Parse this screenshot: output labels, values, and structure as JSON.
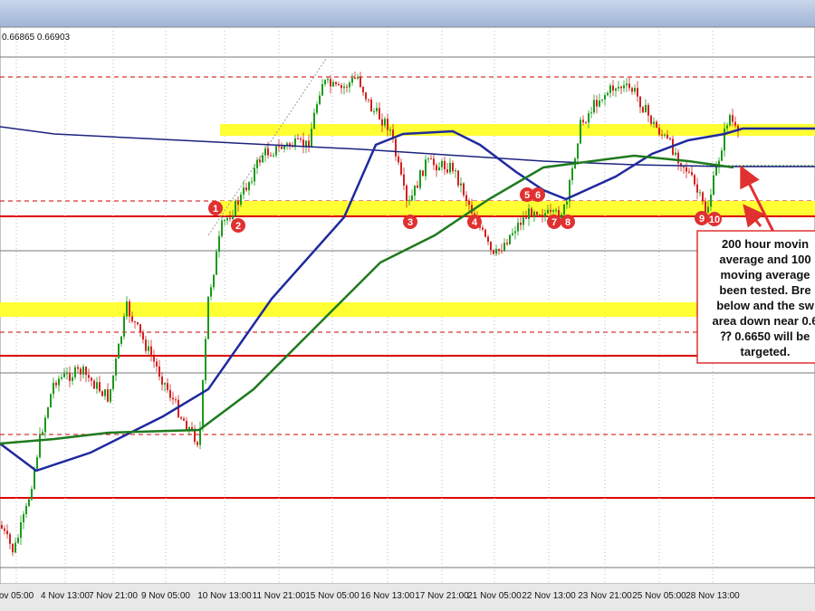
{
  "header": {
    "quote": "0.66865 0.66903"
  },
  "x_axis": {
    "labels": [
      "ov 05:00",
      "4 Nov 13:00",
      "7 Nov 21:00",
      "9 Nov 05:00",
      "10 Nov 13:00",
      "11 Nov 21:00",
      "15 Nov 05:00",
      "16 Nov 13:00",
      "17 Nov 21:00",
      "21 Nov 05:00",
      "22 Nov 13:00",
      "23 Nov 21:00",
      "25 Nov 05:00",
      "28 Nov 13:00"
    ]
  },
  "markers": [
    "1",
    "2",
    "3",
    "4",
    "5",
    "6",
    "7",
    "8",
    "9",
    "10"
  ],
  "annotation": {
    "lines": [
      "200 hour movin",
      "average and 100",
      "moving average",
      "been tested. Bre",
      "below and the sw",
      "area down near 0.6",
      "⁇ 0.6650 will be",
      "targeted."
    ]
  }
}
